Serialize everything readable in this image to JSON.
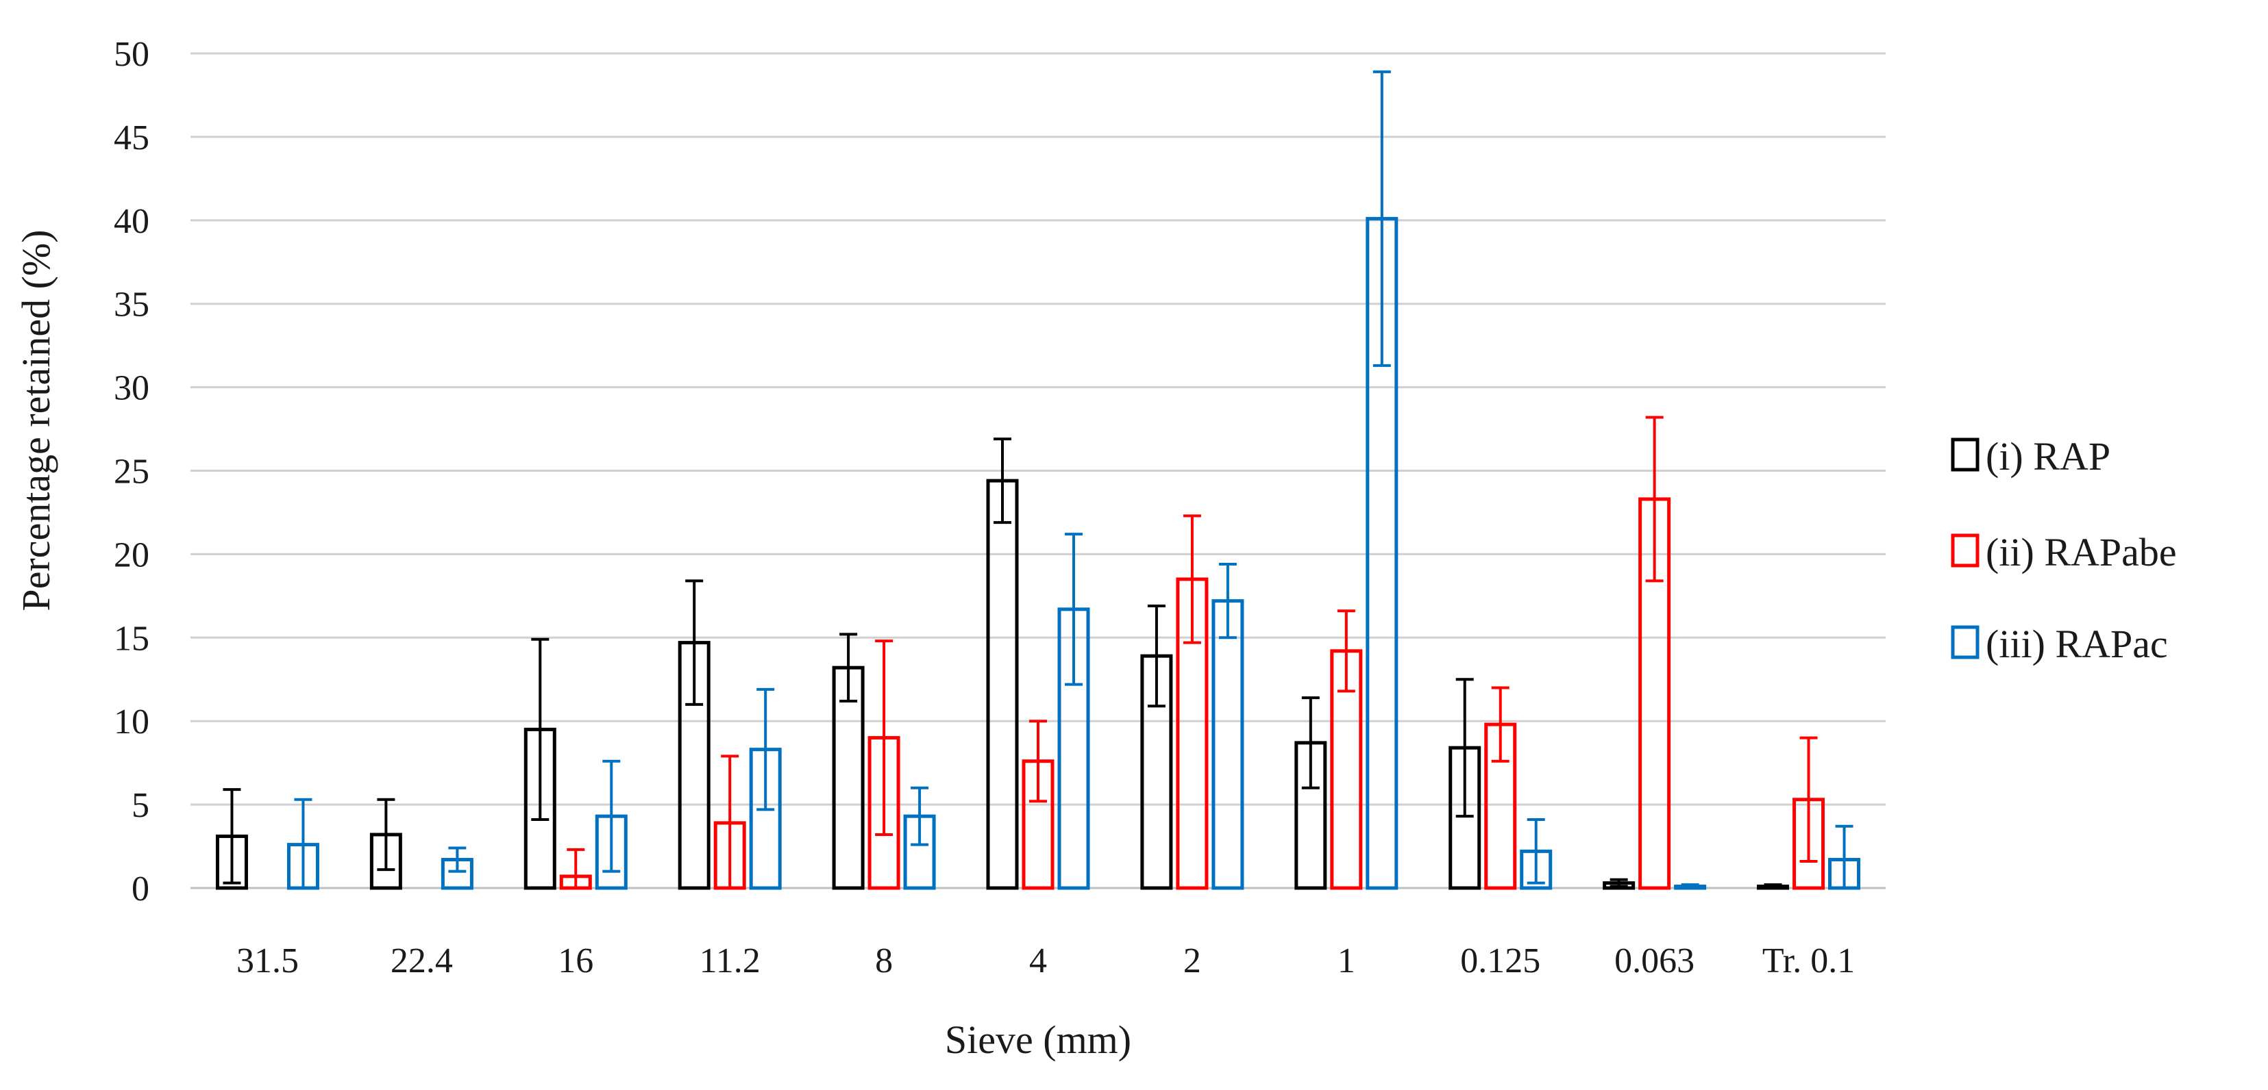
{
  "chart_data": {
    "type": "bar",
    "xlabel": "Sieve (mm)",
    "ylabel": "Percentage retained (%)",
    "ylim": [
      0,
      50
    ],
    "yticks": [
      0,
      5,
      10,
      15,
      20,
      25,
      30,
      35,
      40,
      45,
      50
    ],
    "grid": true,
    "legend_position": "right",
    "categories": [
      "31.5",
      "22.4",
      "16",
      "11.2",
      "8",
      "4",
      "2",
      "1",
      "0.125",
      "0.063",
      "Tr. 0.1"
    ],
    "series": [
      {
        "name": "(i) RAP",
        "color": "#000000",
        "values": [
          3.1,
          3.2,
          9.5,
          14.7,
          13.2,
          24.4,
          13.9,
          8.7,
          8.4,
          0.3,
          0.1
        ],
        "errors": [
          2.8,
          2.1,
          5.4,
          3.7,
          2.0,
          2.5,
          3.0,
          2.7,
          4.1,
          0.2,
          0.1
        ]
      },
      {
        "name": "(ii) RAPabe",
        "color": "#ff0000",
        "values": [
          0,
          0,
          0.7,
          3.9,
          9.0,
          7.6,
          18.5,
          14.2,
          9.8,
          23.3,
          5.3
        ],
        "errors": [
          0,
          0,
          1.6,
          4.0,
          5.8,
          2.4,
          3.8,
          2.4,
          2.2,
          4.9,
          3.7
        ]
      },
      {
        "name": "(iii) RAPac",
        "color": "#0070c0",
        "values": [
          2.6,
          1.7,
          4.3,
          8.3,
          4.3,
          16.7,
          17.2,
          40.1,
          2.2,
          0.1,
          1.7
        ],
        "errors": [
          2.7,
          0.7,
          3.3,
          3.6,
          1.7,
          4.5,
          2.2,
          8.8,
          1.9,
          0.1,
          2.0
        ]
      }
    ]
  }
}
